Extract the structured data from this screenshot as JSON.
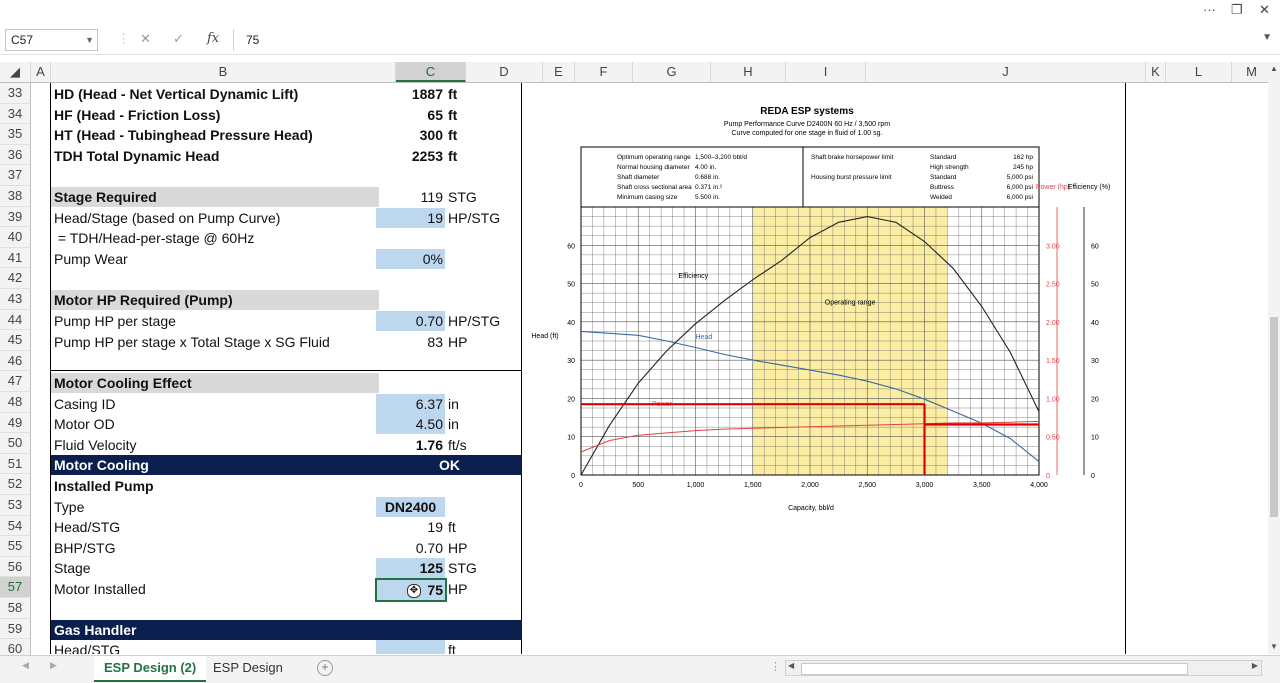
{
  "window": {
    "more": "···",
    "restore": "❐",
    "close": "✕"
  },
  "formula_bar": {
    "cell_ref": "C57",
    "cancel": "✕",
    "enter": "✓",
    "fx": "fx",
    "value": "75"
  },
  "columns": [
    "A",
    "B",
    "C",
    "D",
    "E",
    "F",
    "G",
    "H",
    "I",
    "J",
    "K",
    "L",
    "M"
  ],
  "selected_column": "C",
  "rows": [
    "33",
    "34",
    "35",
    "36",
    "37",
    "38",
    "39",
    "40",
    "41",
    "42",
    "43",
    "44",
    "45",
    "46",
    "47",
    "48",
    "49",
    "50",
    "51",
    "52",
    "53",
    "54",
    "55",
    "56",
    "57",
    "58",
    "59",
    "60"
  ],
  "selected_row": "57",
  "sheet": {
    "r33": {
      "label": "HD (Head - Net Vertical Dynamic Lift)",
      "value": "1887",
      "unit": "ft"
    },
    "r34": {
      "label": "HF (Head - Friction Loss)",
      "value": "65",
      "unit": "ft"
    },
    "r35": {
      "label": "HT (Head - Tubinghead Pressure Head)",
      "value": "300",
      "unit": "ft"
    },
    "r36": {
      "label": "TDH Total Dynamic Head",
      "value": "2253",
      "unit": "ft"
    },
    "r38": {
      "label": "Stage Required",
      "value": "119",
      "unit": "STG"
    },
    "r39": {
      "label": "Head/Stage (based on Pump Curve)",
      "value": "19",
      "unit": "HP/STG"
    },
    "r40": {
      "label": " = TDH/Head-per-stage @ 60Hz"
    },
    "r41": {
      "label": "Pump Wear",
      "value": "0%"
    },
    "r43": {
      "label": "Motor HP Required (Pump)"
    },
    "r44": {
      "label": "Pump HP per stage",
      "value": "0.70",
      "unit": "HP/STG"
    },
    "r45": {
      "label": "Pump HP per stage x Total Stage x SG Fluid",
      "value": "83",
      "unit": "HP"
    },
    "r47": {
      "label": "Motor Cooling Effect"
    },
    "r48": {
      "label": "Casing ID",
      "value": "6.37",
      "unit": "in"
    },
    "r49": {
      "label": "Motor OD",
      "value": "4.50",
      "unit": "in"
    },
    "r50": {
      "label": "Fluid Velocity",
      "value": "1.76",
      "unit": "ft/s"
    },
    "r51": {
      "label": "Motor Cooling",
      "value": "OK"
    },
    "r52": {
      "label": "Installed Pump"
    },
    "r53": {
      "label": "Type",
      "value": "DN2400"
    },
    "r54": {
      "label": "Head/STG",
      "value": "19",
      "unit": "ft"
    },
    "r55": {
      "label": "BHP/STG",
      "value": "0.70",
      "unit": "HP"
    },
    "r56": {
      "label": "Stage",
      "value": "125",
      "unit": "STG"
    },
    "r57": {
      "label": "Motor Installed",
      "value": "75",
      "unit": "HP"
    },
    "r59": {
      "label": "Gas Handler"
    },
    "r60": {
      "label": "Head/STG",
      "unit": "ft"
    }
  },
  "chart_data": {
    "type": "line",
    "title": "REDA ESP systems",
    "subtitle_1": "Pump Performance Curve D2400N 60 Hz / 3,500 rpm",
    "subtitle_2": "Curve computed for one stage in fluid of 1.00 sg.",
    "info_left": [
      [
        "Optimum operating range",
        "1,500–3,200 bbl/d"
      ],
      [
        "Normal housing diameter",
        "4.00 in."
      ],
      [
        "Shaft diameter",
        "0.688 in."
      ],
      [
        "Shaft cross sectional area",
        "0.371 in.²"
      ],
      [
        "Minimum casing size",
        "5.500 in."
      ]
    ],
    "info_right_labels": [
      "Shaft brake horsepower limit",
      "Housing burst pressure limit"
    ],
    "info_right_values": [
      [
        "Standard",
        "162 hp"
      ],
      [
        "High strength",
        "245 hp"
      ],
      [
        "Standard",
        "5,000 psi"
      ],
      [
        "Buttress",
        "6,000 psi"
      ],
      [
        "Welded",
        "6,000 psi"
      ]
    ],
    "xlabel": "Capacity, bbl/d",
    "ylabel_left": "Head (ft)",
    "ylabel_power": "Power (hp)",
    "ylabel_eff": "Efficiency (%)",
    "xlim": [
      0,
      4000
    ],
    "ylim_head": [
      0,
      70
    ],
    "ylim_power": [
      0,
      3.5
    ],
    "ylim_eff": [
      0,
      70
    ],
    "x_ticks": [
      "0",
      "500",
      "1,000",
      "1,500",
      "2,000",
      "2,500",
      "3,000",
      "3,500",
      "4,000"
    ],
    "head_ticks": [
      "0",
      "10",
      "20",
      "30",
      "40",
      "50",
      "60"
    ],
    "power_ticks": [
      "0",
      "0.50",
      "1.00",
      "1.50",
      "2.00",
      "2.50",
      "3.00"
    ],
    "eff_ticks": [
      "0",
      "10",
      "20",
      "30",
      "40",
      "50",
      "60"
    ],
    "operating_range": [
      1500,
      3200
    ],
    "operating_range_label": "Operating range",
    "series": [
      {
        "name": "Head",
        "color": "#3b6aa0",
        "x": [
          0,
          250,
          500,
          750,
          1000,
          1250,
          1500,
          1750,
          2000,
          2250,
          2500,
          2750,
          3000,
          3250,
          3500,
          3750,
          4000
        ],
        "y": [
          37.5,
          37,
          36.5,
          35,
          33.3,
          31.5,
          30,
          28.7,
          27.4,
          26.1,
          24.5,
          22.5,
          19.8,
          16.7,
          13.5,
          9.5,
          3.5
        ]
      },
      {
        "name": "Efficiency",
        "color": "#222222",
        "x": [
          0,
          250,
          500,
          750,
          1000,
          1250,
          1500,
          1750,
          2000,
          2250,
          2500,
          2750,
          3000,
          3250,
          3500,
          3750,
          4000
        ],
        "y": [
          0,
          13,
          24,
          32.5,
          39.5,
          45.5,
          51,
          56,
          62,
          66,
          67.5,
          66,
          61,
          54,
          44,
          32,
          16.5
        ]
      },
      {
        "name": "Power",
        "color": "#e0444a",
        "x": [
          0,
          250,
          500,
          750,
          1000,
          1250,
          1500,
          1750,
          2000,
          2250,
          2500,
          2750,
          3000,
          3250,
          3500,
          3750,
          4000
        ],
        "y": [
          0.3,
          0.45,
          0.52,
          0.55,
          0.58,
          0.6,
          0.61,
          0.62,
          0.63,
          0.64,
          0.65,
          0.66,
          0.67,
          0.68,
          0.68,
          0.69,
          0.7
        ]
      }
    ],
    "operating_point": {
      "x": 3000,
      "head": 18.5,
      "power": 0.66
    },
    "op_line_color": "#e00000"
  },
  "tabs": [
    {
      "label": "ESP Design (2)",
      "active": true
    },
    {
      "label": "ESP Design",
      "active": false
    }
  ],
  "tab_add": "+"
}
